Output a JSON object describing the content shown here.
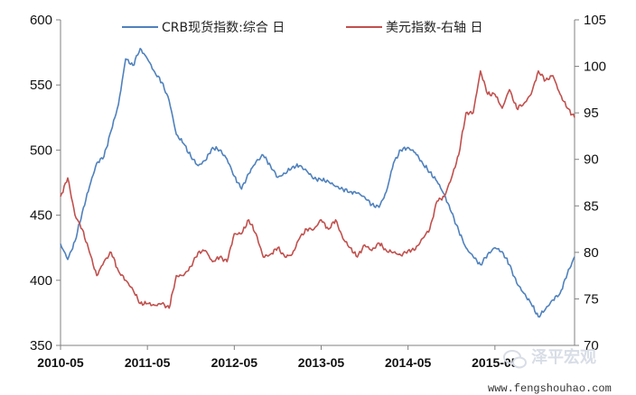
{
  "chart_data": {
    "type": "line",
    "title": "",
    "x": [
      "2010-05",
      "2011-05",
      "2012-05",
      "2013-05",
      "2014-05",
      "2015-05"
    ],
    "x_tick_labels": [
      "2010-05",
      "2011-05",
      "2012-05",
      "2013-05",
      "2014-05",
      "2015-05"
    ],
    "y_left": {
      "ylim": [
        350,
        600
      ],
      "ticks": [
        350,
        400,
        450,
        500,
        550,
        600
      ]
    },
    "y_right": {
      "ylim": [
        70,
        105
      ],
      "ticks": [
        70,
        75,
        80,
        85,
        90,
        95,
        100,
        105
      ]
    },
    "legend_position": "top",
    "grid": false,
    "series": [
      {
        "name": "CRB现货指数:综合 日",
        "axis": "left",
        "color": "#4f81bd",
        "points": [
          [
            "2010-05",
            428
          ],
          [
            "2010-06",
            416
          ],
          [
            "2010-07",
            430
          ],
          [
            "2010-08",
            452
          ],
          [
            "2010-09",
            472
          ],
          [
            "2010-10",
            490
          ],
          [
            "2010-11",
            495
          ],
          [
            "2010-12",
            515
          ],
          [
            "2011-01",
            535
          ],
          [
            "2011-02",
            570
          ],
          [
            "2011-03",
            565
          ],
          [
            "2011-04",
            578
          ],
          [
            "2011-05",
            570
          ],
          [
            "2011-06",
            560
          ],
          [
            "2011-07",
            552
          ],
          [
            "2011-08",
            538
          ],
          [
            "2011-09",
            512
          ],
          [
            "2011-10",
            505
          ],
          [
            "2011-11",
            495
          ],
          [
            "2011-12",
            488
          ],
          [
            "2012-01",
            492
          ],
          [
            "2012-02",
            502
          ],
          [
            "2012-03",
            500
          ],
          [
            "2012-04",
            493
          ],
          [
            "2012-05",
            480
          ],
          [
            "2012-06",
            470
          ],
          [
            "2012-07",
            482
          ],
          [
            "2012-08",
            491
          ],
          [
            "2012-09",
            496
          ],
          [
            "2012-10",
            488
          ],
          [
            "2012-11",
            479
          ],
          [
            "2012-12",
            482
          ],
          [
            "2013-01",
            487
          ],
          [
            "2013-02",
            488
          ],
          [
            "2013-03",
            484
          ],
          [
            "2013-04",
            478
          ],
          [
            "2013-05",
            477
          ],
          [
            "2013-06",
            476
          ],
          [
            "2013-07",
            472
          ],
          [
            "2013-08",
            470
          ],
          [
            "2013-09",
            468
          ],
          [
            "2013-10",
            467
          ],
          [
            "2013-11",
            464
          ],
          [
            "2013-12",
            458
          ],
          [
            "2014-01",
            456
          ],
          [
            "2014-02",
            468
          ],
          [
            "2014-03",
            490
          ],
          [
            "2014-04",
            500
          ],
          [
            "2014-05",
            502
          ],
          [
            "2014-06",
            498
          ],
          [
            "2014-07",
            490
          ],
          [
            "2014-08",
            483
          ],
          [
            "2014-09",
            476
          ],
          [
            "2014-10",
            466
          ],
          [
            "2014-11",
            452
          ],
          [
            "2014-12",
            438
          ],
          [
            "2015-01",
            425
          ],
          [
            "2015-02",
            418
          ],
          [
            "2015-03",
            412
          ],
          [
            "2015-04",
            420
          ],
          [
            "2015-05",
            425
          ],
          [
            "2015-06",
            422
          ],
          [
            "2015-07",
            412
          ],
          [
            "2015-08",
            398
          ],
          [
            "2015-09",
            390
          ],
          [
            "2015-10",
            382
          ],
          [
            "2015-11",
            372
          ],
          [
            "2015-12",
            378
          ],
          [
            "2016-01",
            385
          ],
          [
            "2016-02",
            390
          ],
          [
            "2016-03",
            405
          ],
          [
            "2016-04",
            418
          ]
        ]
      },
      {
        "name": "美元指数-右轴 日",
        "axis": "right",
        "color": "#c0504d",
        "points": [
          [
            "2010-05",
            86
          ],
          [
            "2010-06",
            88
          ],
          [
            "2010-07",
            84
          ],
          [
            "2010-08",
            82.5
          ],
          [
            "2010-09",
            80
          ],
          [
            "2010-10",
            77.5
          ],
          [
            "2010-11",
            79
          ],
          [
            "2010-12",
            80
          ],
          [
            "2011-01",
            78
          ],
          [
            "2011-02",
            77
          ],
          [
            "2011-03",
            76
          ],
          [
            "2011-04",
            74.5
          ],
          [
            "2011-05",
            74.5
          ],
          [
            "2011-06",
            74.3
          ],
          [
            "2011-07",
            74.5
          ],
          [
            "2011-08",
            74
          ],
          [
            "2011-09",
            77.5
          ],
          [
            "2011-10",
            77.5
          ],
          [
            "2011-11",
            78.5
          ],
          [
            "2011-12",
            80
          ],
          [
            "2012-01",
            80.2
          ],
          [
            "2012-02",
            79
          ],
          [
            "2012-03",
            79.5
          ],
          [
            "2012-04",
            79
          ],
          [
            "2012-05",
            82
          ],
          [
            "2012-06",
            82
          ],
          [
            "2012-07",
            83.5
          ],
          [
            "2012-08",
            82
          ],
          [
            "2012-09",
            79.5
          ],
          [
            "2012-10",
            79.8
          ],
          [
            "2012-11",
            80.5
          ],
          [
            "2012-12",
            79.5
          ],
          [
            "2013-01",
            79.8
          ],
          [
            "2013-02",
            81.5
          ],
          [
            "2013-03",
            82.5
          ],
          [
            "2013-04",
            82.5
          ],
          [
            "2013-05",
            83.5
          ],
          [
            "2013-06",
            82.5
          ],
          [
            "2013-07",
            83.5
          ],
          [
            "2013-08",
            81.5
          ],
          [
            "2013-09",
            80.5
          ],
          [
            "2013-10",
            79.5
          ],
          [
            "2013-11",
            80.8
          ],
          [
            "2013-12",
            80.2
          ],
          [
            "2014-01",
            81
          ],
          [
            "2014-02",
            80.2
          ],
          [
            "2014-03",
            80
          ],
          [
            "2014-04",
            79.7
          ],
          [
            "2014-05",
            80.2
          ],
          [
            "2014-06",
            80.3
          ],
          [
            "2014-07",
            81.5
          ],
          [
            "2014-08",
            82.5
          ],
          [
            "2014-09",
            85.5
          ],
          [
            "2014-10",
            86
          ],
          [
            "2014-11",
            88
          ],
          [
            "2014-12",
            90.5
          ],
          [
            "2015-01",
            95
          ],
          [
            "2015-02",
            95
          ],
          [
            "2015-03",
            99.5
          ],
          [
            "2015-04",
            97
          ],
          [
            "2015-05",
            97
          ],
          [
            "2015-06",
            95.5
          ],
          [
            "2015-07",
            97.5
          ],
          [
            "2015-08",
            95.5
          ],
          [
            "2015-09",
            96
          ],
          [
            "2015-10",
            97
          ],
          [
            "2015-11",
            99.5
          ],
          [
            "2015-12",
            98.5
          ],
          [
            "2016-01",
            99
          ],
          [
            "2016-02",
            97
          ],
          [
            "2016-03",
            95.5
          ],
          [
            "2016-04",
            94.5
          ]
        ]
      }
    ]
  },
  "watermark": {
    "brand": "泽平宏观",
    "url": "www.fengshouhao.com",
    "icon": "wechat-icon"
  }
}
